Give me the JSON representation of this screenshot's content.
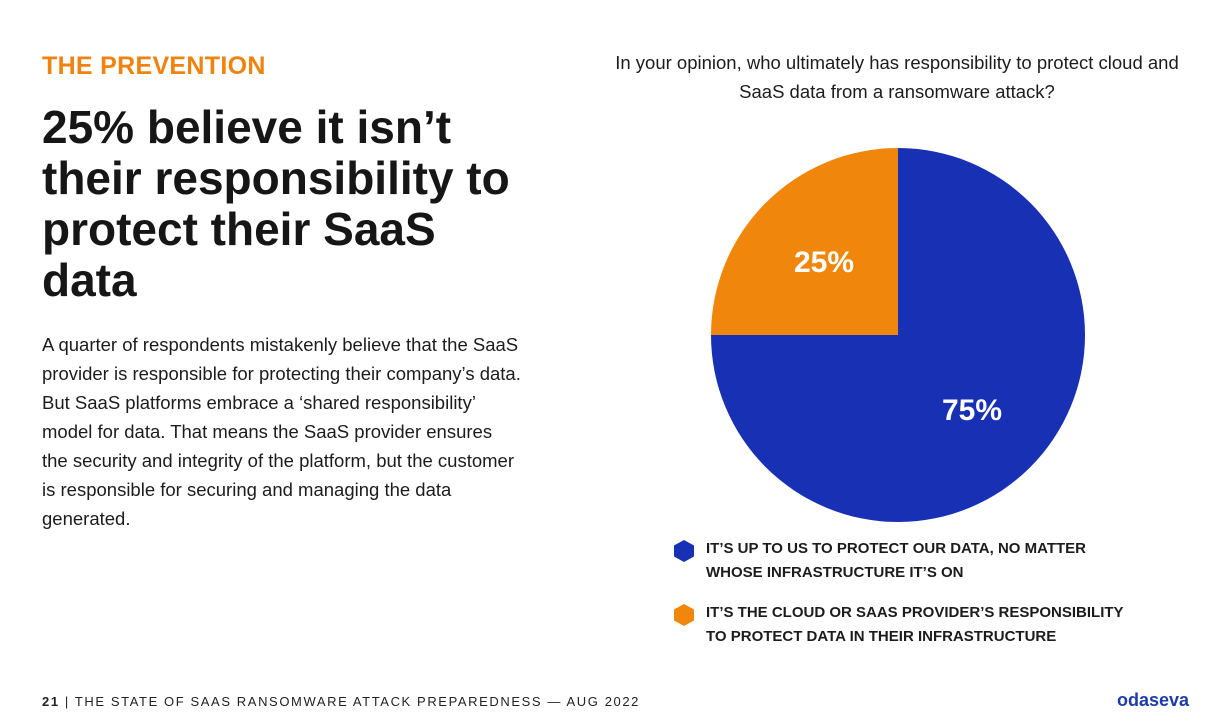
{
  "eyebrow": "THE PREVENTION",
  "headline": "25% believe it isn’t their responsibility to protect their SaaS data",
  "body": "A quarter of respondents mistakenly believe that the SaaS provider is responsible for protecting their company’s data. But SaaS platforms embrace a ‘shared responsibility’ model for data. That means the SaaS provider ensures the security and integrity of the platform, but the customer is responsible for securing and managing the data generated.",
  "footer": {
    "page": "21",
    "separator": "|",
    "text": "THE STATE OF SAAS RANSOMWARE ATTACK PREPAREDNESS — AUG 2022"
  },
  "brand": "odaseva",
  "colors": {
    "accent": "#f0830f",
    "primary": "#1730b4"
  },
  "chart_data": {
    "type": "pie",
    "title": "In your opinion, who ultimately has responsibility to protect cloud and SaaS data from a ransomware attack?",
    "slices": [
      {
        "label": "IT’S UP TO US TO PROTECT OUR DATA, NO MATTER WHOSE INFRASTRUCTURE IT’S ON",
        "value": 75,
        "display": "75%",
        "color": "#1730b4"
      },
      {
        "label": "IT’S THE CLOUD OR SAAS PROVIDER’S RESPONSIBILITY TO PROTECT DATA IN THEIR INFRASTRUCTURE",
        "value": 25,
        "display": "25%",
        "color": "#f0870c"
      }
    ],
    "legend_position": "bottom"
  }
}
